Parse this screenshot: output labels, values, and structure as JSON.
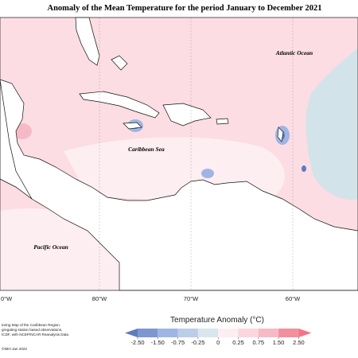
{
  "title": "Anomaly of the Mean Temperature for the period January to December 2021",
  "map_labels": [
    "Atlantic Ocean",
    "Caribbean Sea",
    "Pacific Ocean"
  ],
  "longitudes": [
    "0°W",
    "80°W",
    "70°W",
    "60°W"
  ],
  "notes": [
    "toring Map of the Caribbean Region.",
    "gregating station based observations,",
    "ICDF, with NCEP/NCAR Reanalysis Data",
    "©IMH Jan 2022"
  ],
  "legend": {
    "title": "Temperature Anomaly (°C)",
    "ticks": [
      {
        "value": -2.5,
        "label": "-2.50"
      },
      {
        "value": -1.5,
        "label": "-1.50"
      },
      {
        "value": -0.75,
        "label": "-0.75"
      },
      {
        "value": -0.25,
        "label": "-0.25"
      },
      0,
      {
        "value": 0.25,
        "label": "0.25"
      },
      {
        "value": 0.75,
        "label": "0.75"
      },
      {
        "value": 1.5,
        "label": "1.50"
      },
      {
        "value": 2.5,
        "label": "2.50"
      }
    ],
    "colors": [
      "#5f7bbf",
      "#7d97d2",
      "#9fb5e4",
      "#bccde8",
      "#d9e6ee",
      "#fdeef1",
      "#fbd6de",
      "#f6bac6",
      "#f2909f",
      "#f57388"
    ]
  }
}
